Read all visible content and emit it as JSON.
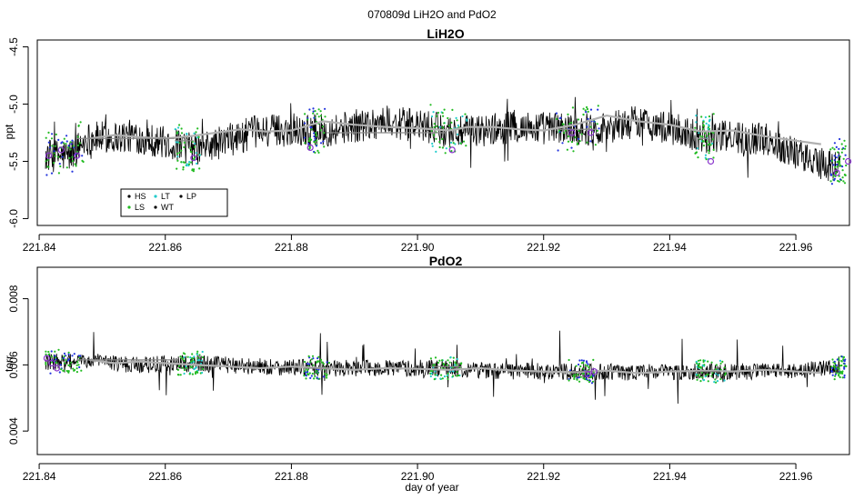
{
  "figure": {
    "suptitle": "070809d   LiH2O and PdO2",
    "xlabel": "day of year"
  },
  "chart_data": [
    {
      "type": "line",
      "title": "LiH2O",
      "ylabel": "ppt",
      "xlim": [
        221.8397,
        221.9685
      ],
      "ylim": [
        -6.06,
        -4.44
      ],
      "x_ticks": [
        221.84,
        221.86,
        221.88,
        221.9,
        221.92,
        221.94,
        221.96
      ],
      "x_tick_labels": [
        "221.84",
        "221.86",
        "221.88",
        "221.90",
        "221.92",
        "221.94",
        "221.96"
      ],
      "y_ticks": [
        -6.0,
        -5.5,
        -5.0,
        -4.5
      ],
      "y_tick_labels": [
        "-6.0",
        "-5.5",
        "-5.0",
        "-4.5"
      ],
      "colors": {
        "trace": "#000000",
        "smooth": "#b0b0b0",
        "box": "#000000"
      },
      "series": [
        {
          "name": "trace",
          "x": [
            221.841,
            221.845,
            221.8475,
            221.855,
            221.865,
            221.875,
            221.8855,
            221.895,
            221.907,
            221.915,
            221.928,
            221.935,
            221.945,
            221.955,
            221.965,
            221.967
          ],
          "y": [
            -5.45,
            -5.45,
            -5.3,
            -5.28,
            -5.4,
            -5.23,
            -5.23,
            -5.15,
            -5.25,
            -5.2,
            -5.22,
            -5.15,
            -5.28,
            -5.3,
            -5.55,
            -5.5
          ]
        },
        {
          "name": "smooth",
          "x": [
            221.848,
            221.852,
            221.856,
            221.86,
            221.864,
            221.868,
            221.872,
            221.876,
            221.88,
            221.885,
            221.89,
            221.895,
            221.9,
            221.905,
            221.908,
            221.912,
            221.916,
            221.92,
            221.925,
            221.93,
            221.935,
            221.94,
            221.945,
            221.95,
            221.955,
            221.96,
            221.964
          ],
          "y": [
            -5.3,
            -5.27,
            -5.29,
            -5.3,
            -5.28,
            -5.25,
            -5.22,
            -5.24,
            -5.23,
            -5.15,
            -5.18,
            -5.2,
            -5.21,
            -5.23,
            -5.2,
            -5.2,
            -5.22,
            -5.23,
            -5.18,
            -5.1,
            -5.15,
            -5.18,
            -5.24,
            -5.23,
            -5.28,
            -5.32,
            -5.35
          ]
        }
      ],
      "markers": [
        {
          "x": 221.8415,
          "y": -5.45
        },
        {
          "x": 221.8435,
          "y": -5.4
        },
        {
          "x": 221.846,
          "y": -5.45
        },
        {
          "x": 221.8645,
          "y": -5.47
        },
        {
          "x": 221.883,
          "y": -5.38
        },
        {
          "x": 221.9055,
          "y": -5.4
        },
        {
          "x": 221.9245,
          "y": -5.25
        },
        {
          "x": 221.9275,
          "y": -5.25
        },
        {
          "x": 221.9465,
          "y": -5.5
        },
        {
          "x": 221.9665,
          "y": -5.6
        },
        {
          "x": 221.9683,
          "y": -5.5
        }
      ],
      "legend": {
        "position": "bottom-left",
        "entries": [
          {
            "label": "HS",
            "color": "#000000"
          },
          {
            "label": "LS",
            "color": "#22bb22"
          },
          {
            "label": "LT",
            "color": "#22cccc"
          },
          {
            "label": "WT",
            "color": "#000000"
          },
          {
            "label": "LP",
            "color": "#000000"
          }
        ]
      }
    },
    {
      "type": "line",
      "title": "PdO2",
      "ylabel": "torr",
      "xlim": [
        221.8397,
        221.9685
      ],
      "ylim": [
        0.00329,
        0.00895
      ],
      "x_ticks": [
        221.84,
        221.86,
        221.88,
        221.9,
        221.92,
        221.94,
        221.96
      ],
      "x_tick_labels": [
        "221.84",
        "221.86",
        "221.88",
        "221.90",
        "221.92",
        "221.94",
        "221.96"
      ],
      "y_ticks": [
        0.004,
        0.006,
        0.008
      ],
      "y_tick_labels": [
        "0.004",
        "0.006",
        "0.008"
      ],
      "colors": {
        "trace": "#000000",
        "smooth": "#b0b0b0",
        "box": "#000000"
      },
      "series": [
        {
          "name": "trace",
          "x": [
            221.841,
            221.848,
            221.855,
            221.865,
            221.875,
            221.885,
            221.895,
            221.905,
            221.915,
            221.925,
            221.935,
            221.945,
            221.955,
            221.967
          ],
          "y": [
            0.0061,
            0.0061,
            0.006,
            0.00605,
            0.00595,
            0.0059,
            0.0059,
            0.0059,
            0.0058,
            0.0058,
            0.00578,
            0.0058,
            0.0058,
            0.0059
          ]
        },
        {
          "name": "smooth",
          "x": [
            221.848,
            221.852,
            221.856,
            221.86,
            221.865,
            221.87,
            221.875,
            221.88,
            221.885,
            221.89,
            221.895,
            221.9,
            221.905,
            221.91,
            221.915,
            221.92,
            221.925,
            221.93,
            221.935,
            221.94,
            221.945,
            221.95,
            221.955,
            221.96,
            221.964
          ],
          "y": [
            0.00615,
            0.00605,
            0.0061,
            0.00605,
            0.006,
            0.00595,
            0.0059,
            0.00595,
            0.0059,
            0.00585,
            0.0059,
            0.00588,
            0.00585,
            0.0059,
            0.00583,
            0.0058,
            0.00578,
            0.00583,
            0.00575,
            0.0058,
            0.00582,
            0.0058,
            0.00585,
            0.0058,
            0.00576
          ]
        }
      ],
      "markers": [
        {
          "x": 221.8412,
          "y": 0.0062
        },
        {
          "x": 221.842,
          "y": 0.00605
        },
        {
          "x": 221.8428,
          "y": 0.0059
        },
        {
          "x": 221.927,
          "y": 0.00572
        },
        {
          "x": 221.928,
          "y": 0.0058
        }
      ]
    }
  ]
}
